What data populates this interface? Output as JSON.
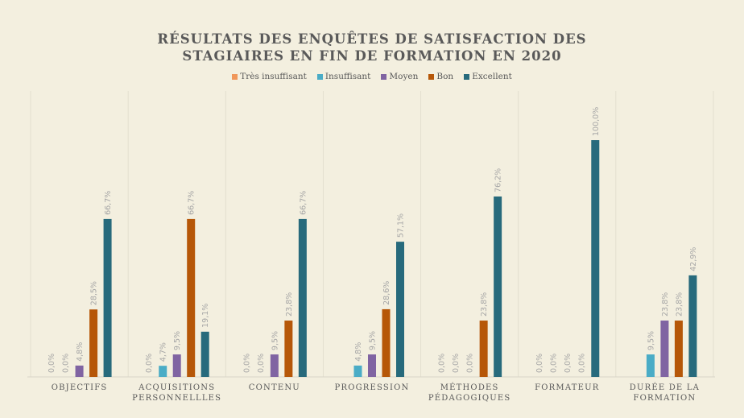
{
  "chart_data": {
    "type": "bar",
    "title": "RÉSULTATS DES ENQUÊTES DE SATISFACTION DES STAGIAIRES EN FIN DE FORMATION EN 2020",
    "title_lines": [
      "RÉSULTATS DES ENQUÊTES DE SATISFACTION DES",
      "STAGIAIRES EN FIN DE FORMATION EN 2020"
    ],
    "xlabel": "",
    "ylabel": "",
    "ylim": [
      0,
      100
    ],
    "grid": false,
    "legend_position": "top",
    "categories": [
      [
        "OBJECTIFS"
      ],
      [
        "ACQUISITIONS",
        "PERSONNELLLES"
      ],
      [
        "CONTENU"
      ],
      [
        "PROGRESSION"
      ],
      [
        "MÉTHODES",
        "PÉDAGOGIQUES"
      ],
      [
        "FORMATEUR"
      ],
      [
        "DURÉE DE LA",
        "FORMATION"
      ]
    ],
    "series": [
      {
        "name": "Très insuffisant",
        "color": "#f0975a",
        "values": [
          0.0,
          0.0,
          0.0,
          null,
          0.0,
          0.0,
          null
        ],
        "labels": [
          "0,0%",
          "0,0%",
          "0,0%",
          null,
          "0,0%",
          "0,0%",
          null
        ]
      },
      {
        "name": "Insuffisant",
        "color": "#4aacc6",
        "values": [
          0.0,
          4.7,
          0.0,
          4.8,
          0.0,
          0.0,
          9.5
        ],
        "labels": [
          "0,0%",
          "4,7%",
          "0,0%",
          "4,8%",
          "0,0%",
          "0,0%",
          "9,5%"
        ]
      },
      {
        "name": "Moyen",
        "color": "#8064a2",
        "values": [
          4.8,
          9.5,
          9.5,
          9.5,
          0.0,
          0.0,
          23.8
        ],
        "labels": [
          "4,8%",
          "9,5%",
          "9,5%",
          "9,5%",
          "0,0%",
          "0,0%",
          "23,8%"
        ]
      },
      {
        "name": "Bon",
        "color": "#b65708",
        "values": [
          28.5,
          66.7,
          23.8,
          28.6,
          23.8,
          0.0,
          23.8
        ],
        "labels": [
          "28,5%",
          "66,7%",
          "23,8%",
          "28,6%",
          "23,8%",
          "0,0%",
          "23,8%"
        ]
      },
      {
        "name": "Excellent",
        "color": "#276a7c",
        "values": [
          66.7,
          19.1,
          66.7,
          57.1,
          76.2,
          100.0,
          42.9
        ],
        "labels": [
          "66,7%",
          "19,1%",
          "66,7%",
          "57,1%",
          "76,2%",
          "100,0%",
          "42,9%"
        ]
      }
    ],
    "colors": {
      "background": "#f3efdf",
      "title": "#595959",
      "axis_line": "#d9d6c8",
      "value_label": "#a6a6a6"
    }
  }
}
